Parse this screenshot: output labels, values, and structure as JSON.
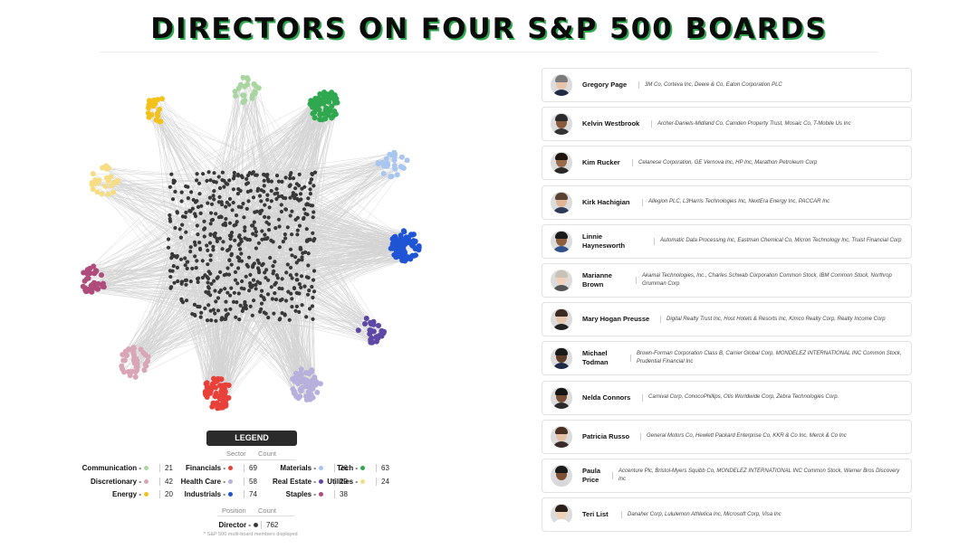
{
  "title": "DIRECTORS ON FOUR S&P 500 BOARDS",
  "colors": {
    "accent_shadow": "#2fa84f",
    "edge": "#d4d4d4",
    "director_node": "#383838"
  },
  "sectors": [
    {
      "key": "communication",
      "name": "Communication",
      "color": "#a9d6a0",
      "count": 21
    },
    {
      "key": "discretionary",
      "name": "Discretionary",
      "color": "#d9a6b8",
      "count": 42
    },
    {
      "key": "energy",
      "name": "Energy",
      "color": "#f2c21b",
      "count": 20
    },
    {
      "key": "financials",
      "name": "Financials",
      "color": "#e8413a",
      "count": 69
    },
    {
      "key": "health_care",
      "name": "Health Care",
      "color": "#b8b0dc",
      "count": 58
    },
    {
      "key": "industrials",
      "name": "Industrials",
      "color": "#1f55d4",
      "count": 74
    },
    {
      "key": "materials",
      "name": "Materials",
      "color": "#a8c6ef",
      "count": 26
    },
    {
      "key": "real_estate",
      "name": "Real Estate",
      "color": "#5e48a6",
      "count": 29
    },
    {
      "key": "staples",
      "name": "Staples",
      "color": "#b04c7c",
      "count": 38
    },
    {
      "key": "tech",
      "name": "Tech",
      "color": "#2fa84f",
      "count": 63
    },
    {
      "key": "utilities",
      "name": "Utilities",
      "color": "#f6dd84",
      "count": 24
    }
  ],
  "legend": {
    "header": "LEGEND",
    "sector_heading": "Sector",
    "count_heading": "Count",
    "position_heading": "Position",
    "position_count_heading": "Count",
    "rows": [
      [
        {
          "label": "Communication -",
          "count": "21",
          "color": "#a9d6a0"
        },
        {
          "label": "Financials -",
          "count": "69",
          "color": "#e8413a"
        },
        {
          "label": "Materials -",
          "count": "26",
          "color": "#a8c6ef"
        },
        {
          "label": "Tech -",
          "count": "63",
          "color": "#2fa84f"
        }
      ],
      [
        {
          "label": "Discretionary -",
          "count": "42",
          "color": "#d9a6b8"
        },
        {
          "label": "Health Care -",
          "count": "58",
          "color": "#b8b0dc"
        },
        {
          "label": "Real Estate -",
          "count": "29",
          "color": "#5e48a6"
        },
        {
          "label": "Utilities -",
          "count": "24",
          "color": "#f6dd84"
        }
      ],
      [
        {
          "label": "Energy -",
          "count": "20",
          "color": "#f2c21b"
        },
        {
          "label": "Industrials -",
          "count": "74",
          "color": "#1f55d4"
        },
        {
          "label": "Staples -",
          "count": "38",
          "color": "#b04c7c"
        }
      ]
    ],
    "director": {
      "label": "Director -",
      "count": "762",
      "color": "#383838"
    },
    "note": "* S&P 500 multi-board members displayed"
  },
  "directors": [
    {
      "name": "Gregory Page",
      "boards": "3M Co, Corteva Inc, Deere & Co, Eaton Corporation PLC",
      "avatar": {
        "skin": "#e6c4aa",
        "hair": "#7a7a7a",
        "shirt": "#1f2a44"
      }
    },
    {
      "name": "Kelvin Westbrook",
      "boards": "Archer-Daniels-Midland Co, Camden Property Trust, Mosaic Co, T-Mobile Us Inc",
      "avatar": {
        "skin": "#8a5a3e",
        "hair": "#2a2a2a",
        "shirt": "#333333"
      }
    },
    {
      "name": "Kim Rucker",
      "boards": "Celanese Corporation, GE Vernova Inc, HP Inc, Marathon Petroleum Corp",
      "avatar": {
        "skin": "#9a6a4c",
        "hair": "#1e1510",
        "shirt": "#2a2a2a"
      }
    },
    {
      "name": "Kirk Hachigian",
      "boards": "Allegion PLC, L3Harris Technologies Inc, NextEra Energy Inc, PACCAR Inc",
      "avatar": {
        "skin": "#e0b596",
        "hair": "#5a4232",
        "shirt": "#2e3a55"
      }
    },
    {
      "name": "Linnie\nHaynesworth",
      "boards": "Automatic Data Processing Inc, Eastman Chemical Co, Micron Technology Inc, Truist Financial Corp",
      "avatar": {
        "skin": "#8f5e3f",
        "hair": "#1b1b1b",
        "shirt": "#30508a"
      }
    },
    {
      "name": "Marianne\nBrown",
      "boards": "Akamai Technologies, Inc., Charles Schwab Corporation Common Stock, IBM Common Stock, Northrop Grumman Corp",
      "avatar": {
        "skin": "#efd2bd",
        "hair": "#c8c2b8",
        "shirt": "#555555"
      }
    },
    {
      "name": "Mary Hogan Preusse",
      "boards": "Digital Realty Trust Inc, Host Hotels & Resorts Inc, Kimco Realty Corp, Realty Income Corp",
      "avatar": {
        "skin": "#e8c6ae",
        "hair": "#3a2a20",
        "shirt": "#222222"
      }
    },
    {
      "name": "Michael\nTodman",
      "boards": "Brown-Forman Corporation Class B, Carrier Global Corp, MONDELEZ INTERNATIONAL INC Common Stock, Prudential Financial Inc",
      "avatar": {
        "skin": "#5e3c28",
        "hair": "#1a1a1a",
        "shirt": "#1f2a44"
      }
    },
    {
      "name": "Nelda Connors",
      "boards": "Carnival Corp, ConocoPhillips, Otis Worldwide Corp, Zebra Technologies Corp.",
      "avatar": {
        "skin": "#7a4e34",
        "hair": "#151515",
        "shirt": "#2a2a2a"
      }
    },
    {
      "name": "Patricia Russo",
      "boards": "General Motors Co, Hewlett Packard Enterprise Co, KKR & Co Inc, Merck & Co Inc",
      "avatar": {
        "skin": "#e6c0a4",
        "hair": "#4a3020",
        "shirt": "#3a2a2a"
      }
    },
    {
      "name": "Paula\nPrice",
      "boards": "Accenture Plc, Bristol-Myers Squibb Co, MONDELEZ INTERNATIONAL INC Common Stock, Warner Bros Discovery Inc",
      "avatar": {
        "skin": "#7e5034",
        "hair": "#1a1a1a",
        "shirt": "#d8d8d8"
      }
    },
    {
      "name": "Teri List",
      "boards": "Danaher Corp, Lululemon Athletica Inc, Microsoft Corp, Visa Inc",
      "avatar": {
        "skin": "#eed0b8",
        "hair": "#2a1e18",
        "shirt": "#ffffff"
      }
    }
  ]
}
